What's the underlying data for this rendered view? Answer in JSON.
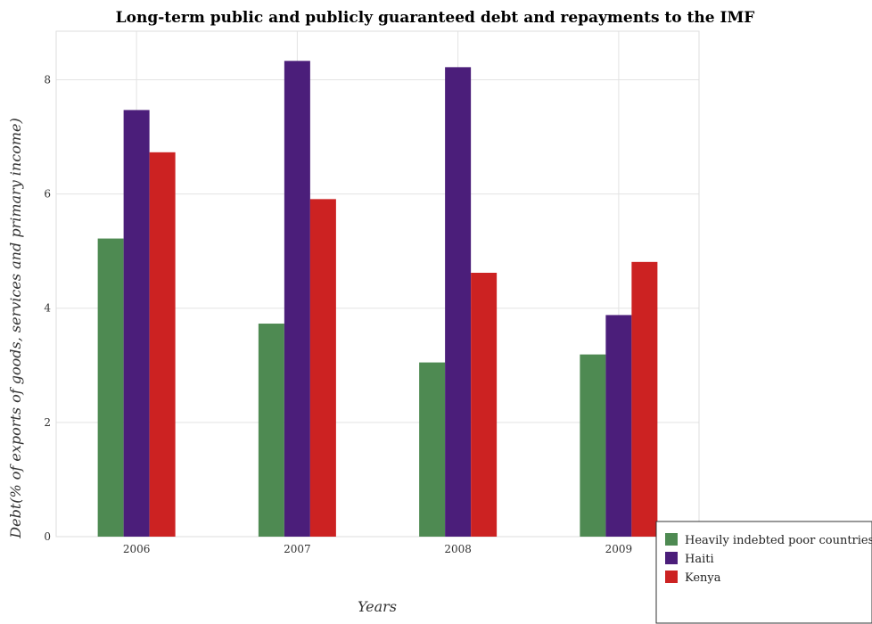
{
  "chart_data": {
    "type": "bar",
    "title": "Long-term public and publicly guaranteed debt and repayments to the IMF",
    "xlabel": "Years",
    "ylabel": "Debt(% of exports of goods, services and primary income)",
    "categories": [
      "2006",
      "2007",
      "2008",
      "2009"
    ],
    "series": [
      {
        "name": "Heavily indebted poor countries",
        "color": "#4e8a52",
        "values": [
          5.22,
          3.73,
          3.05,
          3.19
        ]
      },
      {
        "name": "Haiti",
        "color": "#4b1e7a",
        "values": [
          7.47,
          8.33,
          8.22,
          3.88
        ]
      },
      {
        "name": "Kenya",
        "color": "#cc2222",
        "values": [
          6.73,
          5.91,
          4.62,
          4.81
        ]
      }
    ],
    "ylim": [
      0,
      8.85
    ],
    "yticks": [
      0,
      2,
      4,
      6,
      8
    ],
    "grid": true,
    "legend_position": "bottom-right"
  }
}
